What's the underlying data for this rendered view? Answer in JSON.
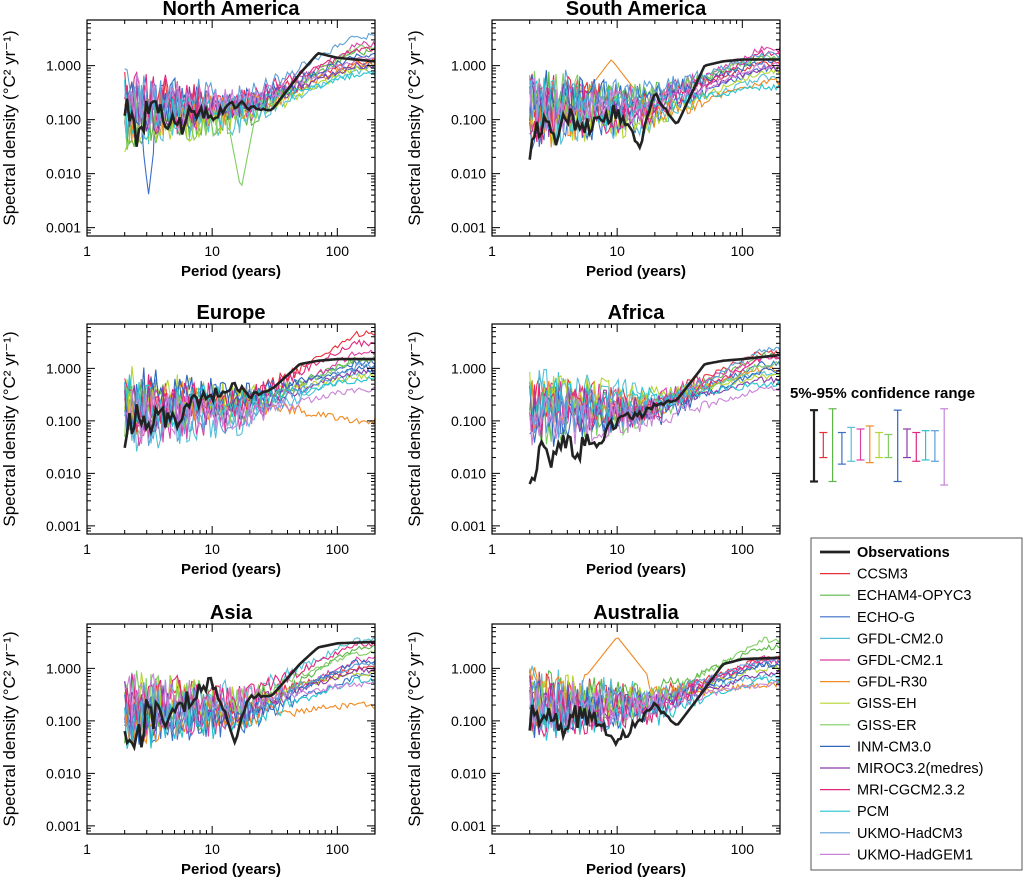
{
  "figure": {
    "ylabel": "Spectral density (°C² yr⁻¹)",
    "xlabel": "Period (years)",
    "xticks": [
      1,
      10,
      100
    ],
    "xtick_labels": [
      "1",
      "10",
      "100"
    ],
    "yticks": [
      0.001,
      0.01,
      0.1,
      1
    ],
    "ytick_labels": [
      "0.001",
      "0.010",
      "0.100",
      "1.000"
    ],
    "xlim": [
      1,
      200
    ],
    "ylim": [
      0.0007,
      7
    ],
    "confidence_title": "5%-95% confidence range"
  },
  "legend": {
    "entries": [
      {
        "name": "Observations",
        "color": "#222222",
        "bold": true
      },
      {
        "name": "CCSM3",
        "color": "#e8303a"
      },
      {
        "name": "ECHAM4-OPYC3",
        "color": "#5cb848"
      },
      {
        "name": "ECHO-G",
        "color": "#3a6fc8"
      },
      {
        "name": "GFDL-CM2.0",
        "color": "#54c0d8"
      },
      {
        "name": "GFDL-CM2.1",
        "color": "#dd3fa3"
      },
      {
        "name": "GFDL-R30",
        "color": "#f08a22"
      },
      {
        "name": "GISS-EH",
        "color": "#b6d530"
      },
      {
        "name": "GISS-ER",
        "color": "#7fcd64"
      },
      {
        "name": "INM-CM3.0",
        "color": "#2f66c0"
      },
      {
        "name": "MIROC3.2(medres)",
        "color": "#8a3aa8"
      },
      {
        "name": "MRI-CGCM2.3.2",
        "color": "#e0287e"
      },
      {
        "name": "PCM",
        "color": "#24c4d0"
      },
      {
        "name": "UKMO-HadCM3",
        "color": "#5b9fd8"
      },
      {
        "name": "UKMO-HadGEM1",
        "color": "#c983d8"
      }
    ]
  },
  "chart_data": [
    {
      "type": "line",
      "title": "North America",
      "xlabel": "Period (years)",
      "xscale": "log",
      "yscale": "log",
      "xlim": [
        1,
        200
      ],
      "ylim": [
        0.0007,
        7
      ],
      "obs": {
        "x": [
          2,
          2.5,
          3,
          4,
          5,
          7,
          10,
          15,
          20,
          30,
          50,
          70,
          100,
          200
        ],
        "y": [
          0.2,
          0.05,
          0.15,
          0.1,
          0.07,
          0.12,
          0.12,
          0.2,
          0.17,
          0.15,
          0.7,
          1.7,
          1.4,
          1.2
        ]
      },
      "models": [
        1.2,
        1.8,
        1.0,
        0.8,
        2.5,
        1.1,
        0.9,
        2.2,
        1.5,
        1.0,
        2.0,
        0.7,
        3.5,
        1.3
      ],
      "features": {
        "dip_giss_er": {
          "x": 17,
          "y": 0.005
        },
        "dip_echo_g": {
          "x": 3.1,
          "y": 0.004
        }
      }
    },
    {
      "type": "line",
      "title": "South America",
      "xlabel": "Period (years)",
      "xscale": "log",
      "yscale": "log",
      "xlim": [
        1,
        200
      ],
      "ylim": [
        0.0007,
        7
      ],
      "obs": {
        "x": [
          2,
          2.5,
          3,
          4,
          5,
          7,
          10,
          15,
          20,
          30,
          50,
          70,
          100,
          200
        ],
        "y": [
          0.03,
          0.07,
          0.05,
          0.12,
          0.1,
          0.08,
          0.15,
          0.03,
          0.3,
          0.08,
          1.0,
          1.2,
          1.3,
          1.3
        ]
      },
      "models": [
        1.1,
        1.4,
        0.9,
        0.6,
        2.0,
        0.5,
        0.8,
        1.5,
        1.2,
        0.9,
        1.7,
        0.4,
        1.6,
        1.0
      ],
      "features": {
        "gfdl_r30_peak": {
          "x": 9,
          "y": 1.3
        }
      }
    },
    {
      "type": "line",
      "title": "Europe",
      "xlabel": "Period (years)",
      "xscale": "log",
      "yscale": "log",
      "xlim": [
        1,
        200
      ],
      "ylim": [
        0.0007,
        7
      ],
      "obs": {
        "x": [
          2,
          2.5,
          3,
          4,
          5,
          7,
          10,
          15,
          20,
          30,
          50,
          70,
          100,
          200
        ],
        "y": [
          0.05,
          0.2,
          0.08,
          0.1,
          0.1,
          0.2,
          0.3,
          0.5,
          0.3,
          0.4,
          1.2,
          1.4,
          1.5,
          1.5
        ]
      },
      "models": [
        4.5,
        1.5,
        1.3,
        0.8,
        2.0,
        0.1,
        0.7,
        1.5,
        1.0,
        0.9,
        3.0,
        0.6,
        1.1,
        0.4
      ],
      "features": {}
    },
    {
      "type": "line",
      "title": "Africa",
      "xlabel": "Period (years)",
      "xscale": "log",
      "yscale": "log",
      "xlim": [
        1,
        200
      ],
      "ylim": [
        0.0007,
        7
      ],
      "obs": {
        "x": [
          2,
          2.5,
          3,
          4,
          5,
          7,
          10,
          15,
          20,
          30,
          50,
          70,
          100,
          200
        ],
        "y": [
          0.01,
          0.03,
          0.02,
          0.04,
          0.03,
          0.05,
          0.1,
          0.12,
          0.2,
          0.25,
          1.2,
          1.4,
          1.5,
          1.8
        ]
      },
      "models": [
        2.0,
        1.8,
        1.2,
        0.8,
        1.6,
        1.0,
        0.7,
        1.2,
        0.9,
        0.6,
        1.5,
        0.5,
        2.2,
        0.4
      ],
      "features": {}
    },
    {
      "type": "line",
      "title": "Asia",
      "xlabel": "Period (years)",
      "xscale": "log",
      "yscale": "log",
      "xlim": [
        1,
        200
      ],
      "ylim": [
        0.0007,
        7
      ],
      "obs": {
        "x": [
          2,
          2.5,
          3,
          4,
          5,
          7,
          10,
          15,
          20,
          30,
          50,
          70,
          100,
          200
        ],
        "y": [
          0.1,
          0.03,
          0.15,
          0.1,
          0.15,
          0.3,
          0.6,
          0.04,
          0.3,
          0.3,
          1.2,
          2.5,
          3.0,
          3.2
        ]
      },
      "models": [
        1.0,
        2.5,
        0.7,
        3.5,
        1.5,
        0.2,
        0.8,
        2.0,
        1.3,
        0.9,
        3.0,
        0.6,
        1.2,
        0.5
      ],
      "features": {}
    },
    {
      "type": "line",
      "title": "Australia",
      "xlabel": "Period (years)",
      "xscale": "log",
      "yscale": "log",
      "xlim": [
        1,
        200
      ],
      "ylim": [
        0.0007,
        7
      ],
      "obs": {
        "x": [
          2,
          2.5,
          3,
          4,
          5,
          7,
          10,
          15,
          20,
          30,
          50,
          70,
          100,
          200
        ],
        "y": [
          0.1,
          0.2,
          0.07,
          0.1,
          0.12,
          0.1,
          0.04,
          0.1,
          0.2,
          0.08,
          0.4,
          1.2,
          1.5,
          1.6
        ]
      },
      "models": [
        1.5,
        2.5,
        1.2,
        0.7,
        1.4,
        0.5,
        1.0,
        3.5,
        1.2,
        0.8,
        1.6,
        0.6,
        1.5,
        0.5
      ],
      "features": {
        "gfdl_r30_peak": {
          "x": 10,
          "y": 4.0
        }
      }
    }
  ],
  "confidence": [
    {
      "name": "Observations",
      "lo": 0.007,
      "hi": 0.16
    },
    {
      "name": "CCSM3",
      "lo": 0.02,
      "hi": 0.06
    },
    {
      "name": "ECHAM4-OPYC3",
      "lo": 0.007,
      "hi": 0.17
    },
    {
      "name": "ECHO-G",
      "lo": 0.015,
      "hi": 0.06
    },
    {
      "name": "GFDL-CM2.0",
      "lo": 0.017,
      "hi": 0.075
    },
    {
      "name": "GFDL-CM2.1",
      "lo": 0.018,
      "hi": 0.07
    },
    {
      "name": "GFDL-R30",
      "lo": 0.016,
      "hi": 0.08
    },
    {
      "name": "GISS-EH",
      "lo": 0.02,
      "hi": 0.06
    },
    {
      "name": "GISS-ER",
      "lo": 0.02,
      "hi": 0.055
    },
    {
      "name": "INM-CM3.0",
      "lo": 0.007,
      "hi": 0.16
    },
    {
      "name": "MIROC3.2(medres)",
      "lo": 0.02,
      "hi": 0.07
    },
    {
      "name": "MRI-CGCM2.3.2",
      "lo": 0.017,
      "hi": 0.06
    },
    {
      "name": "PCM",
      "lo": 0.018,
      "hi": 0.065
    },
    {
      "name": "UKMO-HadCM3",
      "lo": 0.017,
      "hi": 0.065
    },
    {
      "name": "UKMO-HadGEM1",
      "lo": 0.006,
      "hi": 0.17
    }
  ]
}
